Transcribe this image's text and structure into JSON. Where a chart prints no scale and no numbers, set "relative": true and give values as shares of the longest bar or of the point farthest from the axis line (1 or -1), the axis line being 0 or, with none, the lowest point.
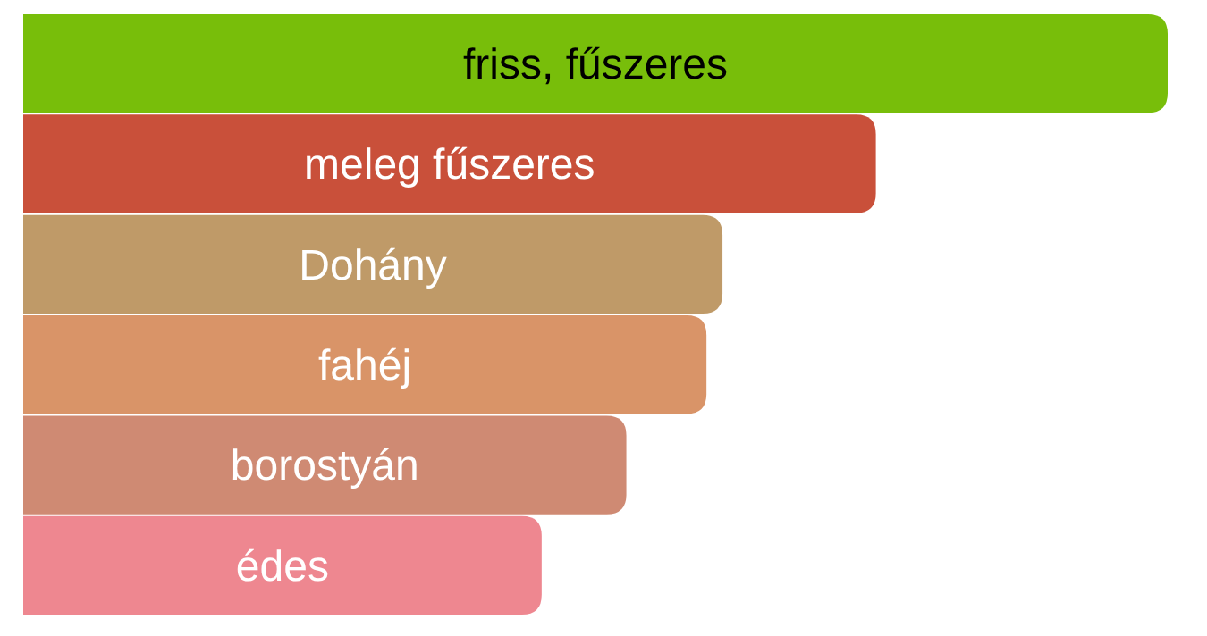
{
  "chart_data": {
    "type": "bar",
    "orientation": "horizontal",
    "relative": true,
    "categories": [
      "friss, fűszeres",
      "meleg fűszeres",
      "Dohány",
      "fahéj",
      "borostyán",
      "édes"
    ],
    "values": [
      1,
      0.745,
      0.611,
      0.597,
      0.527,
      0.453
    ],
    "colors": [
      "#78be0a",
      "#c9503a",
      "#bf9a68",
      "#d99468",
      "#cf8a73",
      "#ee8790"
    ]
  }
}
